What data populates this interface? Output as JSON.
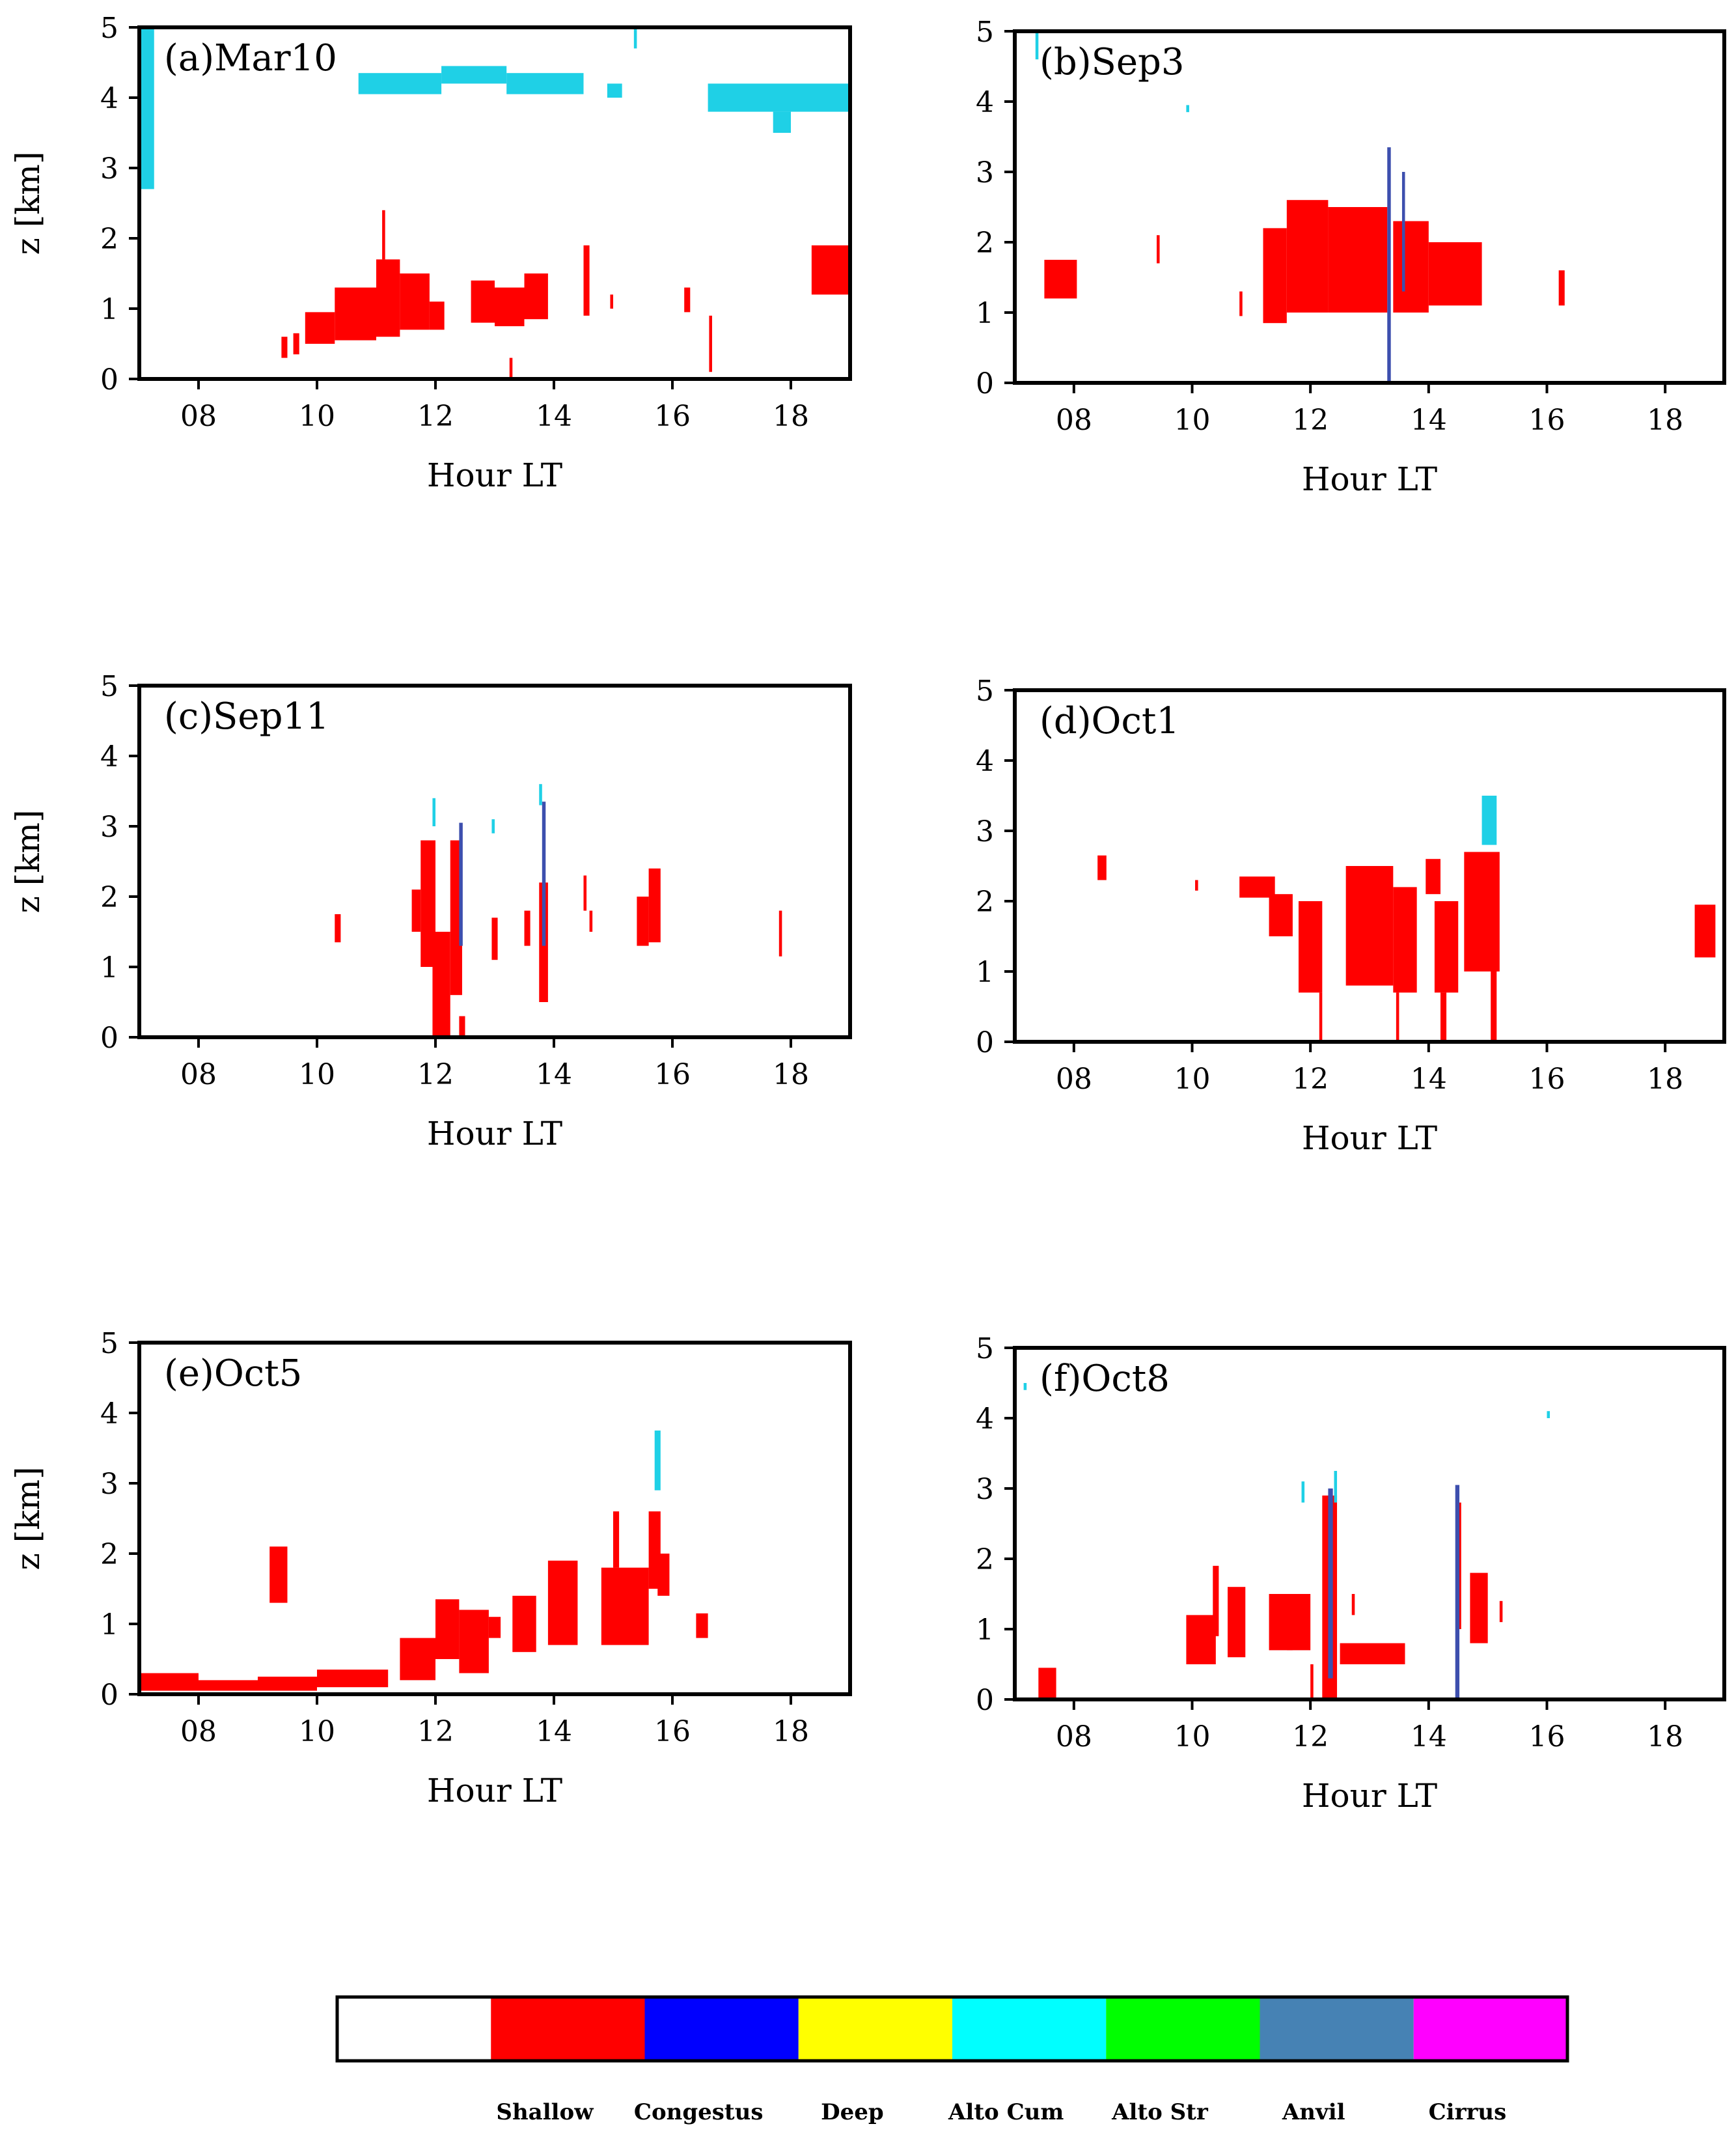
{
  "figure": {
    "colors": {
      "shallow": "#ff0000",
      "congestus": "#0000ff",
      "deep": "#ffff00",
      "alto_cum": "#00ffff",
      "alto_str": "#00ff00",
      "anvil": "#4682b4",
      "cirrus": "#ff00ff",
      "clear": "#ffffff",
      "alto_cum_plotted": "#1fd0e6",
      "anvil_plotted": "#3d4fae"
    }
  },
  "chart_data": [
    {
      "type": "heatmap",
      "title": "(a)Mar10",
      "xlabel": "Hour LT",
      "ylabel": "z [km]",
      "xlim": [
        7,
        19
      ],
      "ylim": [
        0,
        5
      ],
      "xticks": [
        "08",
        "10",
        "12",
        "14",
        "16",
        "18"
      ],
      "yticks": [
        "0",
        "1",
        "2",
        "3",
        "4",
        "5"
      ],
      "segments": [
        {
          "cls": "alto_cum",
          "x0": 6.95,
          "x1": 7.25,
          "y0": 2.7,
          "y1": 5.0
        },
        {
          "cls": "alto_cum",
          "x0": 10.7,
          "x1": 12.1,
          "y0": 4.05,
          "y1": 4.35
        },
        {
          "cls": "alto_cum",
          "x0": 12.1,
          "x1": 13.2,
          "y0": 4.2,
          "y1": 4.45
        },
        {
          "cls": "alto_cum",
          "x0": 13.2,
          "x1": 14.5,
          "y0": 4.05,
          "y1": 4.35
        },
        {
          "cls": "alto_cum",
          "x0": 14.9,
          "x1": 15.15,
          "y0": 4.0,
          "y1": 4.2
        },
        {
          "cls": "alto_cum",
          "x0": 16.6,
          "x1": 19.0,
          "y0": 3.8,
          "y1": 4.2
        },
        {
          "cls": "alto_cum",
          "x0": 17.7,
          "x1": 18.0,
          "y0": 3.5,
          "y1": 3.8
        },
        {
          "cls": "alto_cum",
          "x0": 15.35,
          "x1": 15.4,
          "y0": 4.7,
          "y1": 5.0
        },
        {
          "cls": "shallow",
          "x0": 9.4,
          "x1": 9.5,
          "y0": 0.3,
          "y1": 0.6
        },
        {
          "cls": "shallow",
          "x0": 9.6,
          "x1": 9.7,
          "y0": 0.35,
          "y1": 0.65
        },
        {
          "cls": "shallow",
          "x0": 9.8,
          "x1": 10.3,
          "y0": 0.5,
          "y1": 0.95
        },
        {
          "cls": "shallow",
          "x0": 10.3,
          "x1": 11.0,
          "y0": 0.55,
          "y1": 1.3
        },
        {
          "cls": "shallow",
          "x0": 11.0,
          "x1": 11.4,
          "y0": 0.6,
          "y1": 1.7
        },
        {
          "cls": "shallow",
          "x0": 11.1,
          "x1": 11.15,
          "y0": 1.7,
          "y1": 2.4
        },
        {
          "cls": "shallow",
          "x0": 11.4,
          "x1": 11.9,
          "y0": 0.7,
          "y1": 1.5
        },
        {
          "cls": "shallow",
          "x0": 11.9,
          "x1": 12.15,
          "y0": 0.7,
          "y1": 1.1
        },
        {
          "cls": "shallow",
          "x0": 12.6,
          "x1": 13.0,
          "y0": 0.8,
          "y1": 1.4
        },
        {
          "cls": "shallow",
          "x0": 13.0,
          "x1": 13.5,
          "y0": 0.75,
          "y1": 1.3
        },
        {
          "cls": "shallow",
          "x0": 13.5,
          "x1": 13.9,
          "y0": 0.85,
          "y1": 1.5
        },
        {
          "cls": "shallow",
          "x0": 14.5,
          "x1": 14.6,
          "y0": 0.9,
          "y1": 1.9
        },
        {
          "cls": "shallow",
          "x0": 14.95,
          "x1": 15.0,
          "y0": 1.0,
          "y1": 1.2
        },
        {
          "cls": "shallow",
          "x0": 16.2,
          "x1": 16.3,
          "y0": 0.95,
          "y1": 1.3
        },
        {
          "cls": "shallow",
          "x0": 16.62,
          "x1": 16.67,
          "y0": 0.1,
          "y1": 0.9
        },
        {
          "cls": "shallow",
          "x0": 18.35,
          "x1": 19.0,
          "y0": 1.2,
          "y1": 1.9
        },
        {
          "cls": "shallow",
          "x0": 13.25,
          "x1": 13.3,
          "y0": 0.0,
          "y1": 0.3
        }
      ]
    },
    {
      "type": "heatmap",
      "title": "(b)Sep3",
      "xlabel": "Hour LT",
      "ylabel": "",
      "xlim": [
        7,
        19
      ],
      "ylim": [
        0,
        5
      ],
      "xticks": [
        "08",
        "10",
        "12",
        "14",
        "16",
        "18"
      ],
      "yticks": [
        "0",
        "1",
        "2",
        "3",
        "4",
        "5"
      ],
      "segments": [
        {
          "cls": "shallow",
          "x0": 7.5,
          "x1": 8.05,
          "y0": 1.2,
          "y1": 1.75
        },
        {
          "cls": "shallow",
          "x0": 9.4,
          "x1": 9.45,
          "y0": 1.7,
          "y1": 2.1
        },
        {
          "cls": "shallow",
          "x0": 10.8,
          "x1": 10.85,
          "y0": 0.95,
          "y1": 1.3
        },
        {
          "cls": "shallow",
          "x0": 11.2,
          "x1": 11.6,
          "y0": 0.85,
          "y1": 2.2
        },
        {
          "cls": "shallow",
          "x0": 11.6,
          "x1": 12.3,
          "y0": 1.0,
          "y1": 2.6
        },
        {
          "cls": "shallow",
          "x0": 12.3,
          "x1": 13.3,
          "y0": 1.0,
          "y1": 2.5
        },
        {
          "cls": "shallow",
          "x0": 13.4,
          "x1": 14.0,
          "y0": 1.0,
          "y1": 2.3
        },
        {
          "cls": "shallow",
          "x0": 14.0,
          "x1": 14.9,
          "y0": 1.1,
          "y1": 2.0
        },
        {
          "cls": "shallow",
          "x0": 16.2,
          "x1": 16.3,
          "y0": 1.1,
          "y1": 1.6
        },
        {
          "cls": "anvil",
          "x0": 13.3,
          "x1": 13.36,
          "y0": 0.0,
          "y1": 3.35
        },
        {
          "cls": "anvil",
          "x0": 13.55,
          "x1": 13.6,
          "y0": 1.3,
          "y1": 3.0
        },
        {
          "cls": "alto_cum",
          "x0": 7.35,
          "x1": 7.4,
          "y0": 4.6,
          "y1": 5.0
        },
        {
          "cls": "alto_cum",
          "x0": 9.9,
          "x1": 9.95,
          "y0": 3.85,
          "y1": 3.95
        }
      ]
    },
    {
      "type": "heatmap",
      "title": "(c)Sep11",
      "xlabel": "Hour LT",
      "ylabel": "z [km]",
      "xlim": [
        7,
        19
      ],
      "ylim": [
        0,
        5
      ],
      "xticks": [
        "08",
        "10",
        "12",
        "14",
        "16",
        "18"
      ],
      "yticks": [
        "0",
        "1",
        "2",
        "3",
        "4",
        "5"
      ],
      "segments": [
        {
          "cls": "shallow",
          "x0": 10.3,
          "x1": 10.4,
          "y0": 1.35,
          "y1": 1.75
        },
        {
          "cls": "shallow",
          "x0": 11.6,
          "x1": 11.75,
          "y0": 1.5,
          "y1": 2.1
        },
        {
          "cls": "shallow",
          "x0": 11.75,
          "x1": 12.0,
          "y0": 1.0,
          "y1": 2.8
        },
        {
          "cls": "shallow",
          "x0": 11.95,
          "x1": 12.25,
          "y0": 0.0,
          "y1": 1.5
        },
        {
          "cls": "shallow",
          "x0": 12.25,
          "x1": 12.45,
          "y0": 0.6,
          "y1": 2.8
        },
        {
          "cls": "shallow",
          "x0": 12.4,
          "x1": 12.5,
          "y0": 0.0,
          "y1": 0.3
        },
        {
          "cls": "shallow",
          "x0": 12.95,
          "x1": 13.05,
          "y0": 1.1,
          "y1": 1.7
        },
        {
          "cls": "shallow",
          "x0": 13.5,
          "x1": 13.6,
          "y0": 1.3,
          "y1": 1.8
        },
        {
          "cls": "shallow",
          "x0": 13.75,
          "x1": 13.9,
          "y0": 0.5,
          "y1": 2.2
        },
        {
          "cls": "shallow",
          "x0": 14.5,
          "x1": 14.55,
          "y0": 1.8,
          "y1": 2.3
        },
        {
          "cls": "shallow",
          "x0": 14.6,
          "x1": 14.65,
          "y0": 1.5,
          "y1": 1.8
        },
        {
          "cls": "shallow",
          "x0": 15.4,
          "x1": 15.6,
          "y0": 1.3,
          "y1": 2.0
        },
        {
          "cls": "shallow",
          "x0": 15.6,
          "x1": 15.8,
          "y0": 1.35,
          "y1": 2.4
        },
        {
          "cls": "shallow",
          "x0": 17.8,
          "x1": 17.85,
          "y0": 1.15,
          "y1": 1.8
        },
        {
          "cls": "anvil",
          "x0": 12.4,
          "x1": 12.46,
          "y0": 1.3,
          "y1": 3.05
        },
        {
          "cls": "anvil",
          "x0": 13.8,
          "x1": 13.86,
          "y0": 1.3,
          "y1": 3.35
        },
        {
          "cls": "alto_cum",
          "x0": 11.95,
          "x1": 12.0,
          "y0": 3.0,
          "y1": 3.4
        },
        {
          "cls": "alto_cum",
          "x0": 12.95,
          "x1": 13.0,
          "y0": 2.9,
          "y1": 3.1
        },
        {
          "cls": "alto_cum",
          "x0": 13.75,
          "x1": 13.8,
          "y0": 3.3,
          "y1": 3.6
        }
      ]
    },
    {
      "type": "heatmap",
      "title": "(d)Oct1",
      "xlabel": "Hour LT",
      "ylabel": "",
      "xlim": [
        7,
        19
      ],
      "ylim": [
        0,
        5
      ],
      "xticks": [
        "08",
        "10",
        "12",
        "14",
        "16",
        "18"
      ],
      "yticks": [
        "0",
        "1",
        "2",
        "3",
        "4",
        "5"
      ],
      "segments": [
        {
          "cls": "shallow",
          "x0": 8.4,
          "x1": 8.55,
          "y0": 2.3,
          "y1": 2.65
        },
        {
          "cls": "shallow",
          "x0": 10.05,
          "x1": 10.1,
          "y0": 2.15,
          "y1": 2.3
        },
        {
          "cls": "shallow",
          "x0": 10.8,
          "x1": 11.4,
          "y0": 2.05,
          "y1": 2.35
        },
        {
          "cls": "shallow",
          "x0": 11.3,
          "x1": 11.7,
          "y0": 1.5,
          "y1": 2.1
        },
        {
          "cls": "shallow",
          "x0": 11.8,
          "x1": 12.2,
          "y0": 0.7,
          "y1": 2.0
        },
        {
          "cls": "shallow",
          "x0": 12.15,
          "x1": 12.2,
          "y0": 0.0,
          "y1": 0.7
        },
        {
          "cls": "shallow",
          "x0": 12.6,
          "x1": 13.4,
          "y0": 0.8,
          "y1": 2.5
        },
        {
          "cls": "shallow",
          "x0": 13.4,
          "x1": 13.8,
          "y0": 0.7,
          "y1": 2.2
        },
        {
          "cls": "shallow",
          "x0": 13.45,
          "x1": 13.5,
          "y0": 0.0,
          "y1": 0.7
        },
        {
          "cls": "shallow",
          "x0": 13.95,
          "x1": 14.2,
          "y0": 2.1,
          "y1": 2.6
        },
        {
          "cls": "shallow",
          "x0": 14.1,
          "x1": 14.5,
          "y0": 0.7,
          "y1": 2.0
        },
        {
          "cls": "shallow",
          "x0": 14.2,
          "x1": 14.3,
          "y0": 0.0,
          "y1": 0.7
        },
        {
          "cls": "shallow",
          "x0": 14.6,
          "x1": 15.2,
          "y0": 1.0,
          "y1": 2.7
        },
        {
          "cls": "shallow",
          "x0": 15.05,
          "x1": 15.15,
          "y0": 0.0,
          "y1": 1.2
        },
        {
          "cls": "shallow",
          "x0": 18.5,
          "x1": 18.85,
          "y0": 1.2,
          "y1": 1.95
        },
        {
          "cls": "alto_cum",
          "x0": 14.9,
          "x1": 15.15,
          "y0": 2.8,
          "y1": 3.5
        }
      ]
    },
    {
      "type": "heatmap",
      "title": "(e)Oct5",
      "xlabel": "Hour LT",
      "ylabel": "z [km]",
      "xlim": [
        7,
        19
      ],
      "ylim": [
        0,
        5
      ],
      "xticks": [
        "08",
        "10",
        "12",
        "14",
        "16",
        "18"
      ],
      "yticks": [
        "0",
        "1",
        "2",
        "3",
        "4",
        "5"
      ],
      "segments": [
        {
          "cls": "shallow",
          "x0": 7.0,
          "x1": 8.0,
          "y0": 0.05,
          "y1": 0.3
        },
        {
          "cls": "shallow",
          "x0": 8.0,
          "x1": 9.0,
          "y0": 0.05,
          "y1": 0.2
        },
        {
          "cls": "shallow",
          "x0": 9.0,
          "x1": 10.0,
          "y0": 0.05,
          "y1": 0.25
        },
        {
          "cls": "shallow",
          "x0": 10.0,
          "x1": 11.2,
          "y0": 0.1,
          "y1": 0.35
        },
        {
          "cls": "shallow",
          "x0": 9.2,
          "x1": 9.5,
          "y0": 1.3,
          "y1": 2.1
        },
        {
          "cls": "shallow",
          "x0": 11.4,
          "x1": 12.0,
          "y0": 0.2,
          "y1": 0.8
        },
        {
          "cls": "shallow",
          "x0": 12.0,
          "x1": 12.4,
          "y0": 0.5,
          "y1": 1.35
        },
        {
          "cls": "shallow",
          "x0": 12.4,
          "x1": 12.9,
          "y0": 0.3,
          "y1": 1.2
        },
        {
          "cls": "shallow",
          "x0": 12.9,
          "x1": 13.1,
          "y0": 0.8,
          "y1": 1.1
        },
        {
          "cls": "shallow",
          "x0": 13.3,
          "x1": 13.7,
          "y0": 0.6,
          "y1": 1.4
        },
        {
          "cls": "shallow",
          "x0": 13.9,
          "x1": 14.4,
          "y0": 0.7,
          "y1": 1.9
        },
        {
          "cls": "shallow",
          "x0": 14.8,
          "x1": 15.6,
          "y0": 0.7,
          "y1": 1.8
        },
        {
          "cls": "shallow",
          "x0": 15.0,
          "x1": 15.1,
          "y0": 1.8,
          "y1": 2.6
        },
        {
          "cls": "shallow",
          "x0": 15.6,
          "x1": 15.8,
          "y0": 1.5,
          "y1": 2.6
        },
        {
          "cls": "shallow",
          "x0": 15.75,
          "x1": 15.95,
          "y0": 1.4,
          "y1": 2.0
        },
        {
          "cls": "shallow",
          "x0": 16.4,
          "x1": 16.6,
          "y0": 0.8,
          "y1": 1.15
        },
        {
          "cls": "alto_cum",
          "x0": 15.7,
          "x1": 15.8,
          "y0": 2.9,
          "y1": 3.75
        }
      ]
    },
    {
      "type": "heatmap",
      "title": "(f)Oct8",
      "xlabel": "Hour LT",
      "ylabel": "",
      "xlim": [
        7,
        19
      ],
      "ylim": [
        0,
        5
      ],
      "xticks": [
        "08",
        "10",
        "12",
        "14",
        "16",
        "18"
      ],
      "yticks": [
        "0",
        "1",
        "2",
        "3",
        "4",
        "5"
      ],
      "segments": [
        {
          "cls": "shallow",
          "x0": 7.4,
          "x1": 7.7,
          "y0": 0.0,
          "y1": 0.45
        },
        {
          "cls": "shallow",
          "x0": 9.9,
          "x1": 10.4,
          "y0": 0.5,
          "y1": 1.2
        },
        {
          "cls": "shallow",
          "x0": 10.35,
          "x1": 10.45,
          "y0": 0.9,
          "y1": 1.9
        },
        {
          "cls": "shallow",
          "x0": 10.6,
          "x1": 10.9,
          "y0": 0.6,
          "y1": 1.6
        },
        {
          "cls": "shallow",
          "x0": 11.3,
          "x1": 11.7,
          "y0": 0.7,
          "y1": 1.5
        },
        {
          "cls": "shallow",
          "x0": 11.6,
          "x1": 12.0,
          "y0": 0.7,
          "y1": 1.5
        },
        {
          "cls": "shallow",
          "x0": 12.0,
          "x1": 12.05,
          "y0": 0.0,
          "y1": 0.5
        },
        {
          "cls": "shallow",
          "x0": 12.2,
          "x1": 12.45,
          "y0": 0.0,
          "y1": 2.9
        },
        {
          "cls": "shallow",
          "x0": 12.5,
          "x1": 13.6,
          "y0": 0.5,
          "y1": 0.8
        },
        {
          "cls": "shallow",
          "x0": 12.7,
          "x1": 12.75,
          "y0": 1.2,
          "y1": 1.5
        },
        {
          "cls": "shallow",
          "x0": 14.5,
          "x1": 14.55,
          "y0": 1.0,
          "y1": 2.8
        },
        {
          "cls": "shallow",
          "x0": 14.7,
          "x1": 15.0,
          "y0": 0.8,
          "y1": 1.8
        },
        {
          "cls": "shallow",
          "x0": 15.2,
          "x1": 15.25,
          "y0": 1.1,
          "y1": 1.4
        },
        {
          "cls": "anvil",
          "x0": 12.3,
          "x1": 12.38,
          "y0": 0.3,
          "y1": 3.0
        },
        {
          "cls": "anvil",
          "x0": 14.45,
          "x1": 14.52,
          "y0": 0.0,
          "y1": 3.05
        },
        {
          "cls": "alto_cum",
          "x0": 11.85,
          "x1": 11.9,
          "y0": 2.8,
          "y1": 3.1
        },
        {
          "cls": "alto_cum",
          "x0": 12.4,
          "x1": 12.45,
          "y0": 2.8,
          "y1": 3.25
        },
        {
          "cls": "alto_cum",
          "x0": 16.0,
          "x1": 16.05,
          "y0": 4.0,
          "y1": 4.1
        },
        {
          "cls": "alto_cum",
          "x0": 7.15,
          "x1": 7.2,
          "y0": 4.4,
          "y1": 4.5
        }
      ]
    }
  ],
  "colorbar": {
    "labels": [
      "Shallow",
      "Congestus",
      "Deep",
      "Alto Cum",
      "Alto Str",
      "Anvil",
      "Cirrus"
    ],
    "swatch_keys": [
      "clear",
      "shallow",
      "congestus",
      "deep",
      "alto_cum",
      "alto_str",
      "anvil",
      "cirrus"
    ]
  }
}
